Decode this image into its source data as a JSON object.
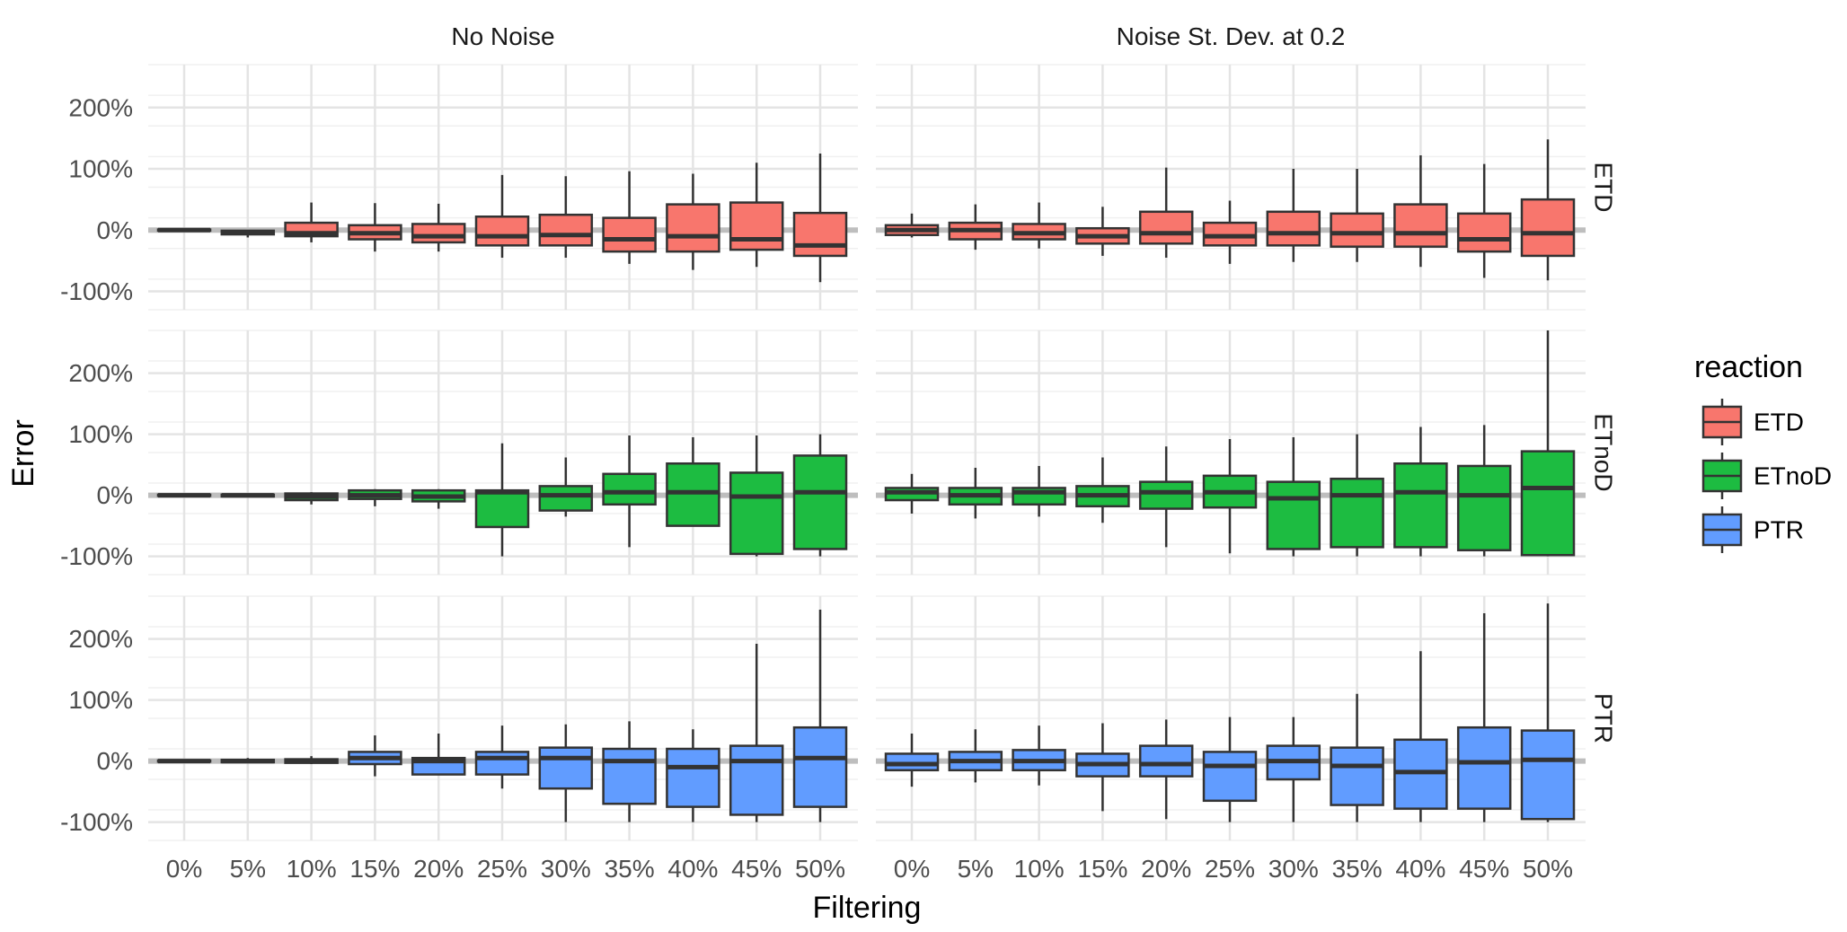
{
  "chart_data": {
    "type": "box",
    "xlabel": "Filtering",
    "ylabel": "Error",
    "categories": [
      "0%",
      "5%",
      "10%",
      "15%",
      "20%",
      "25%",
      "30%",
      "35%",
      "40%",
      "45%",
      "50%"
    ],
    "y_ticks": [
      -100,
      0,
      100,
      200
    ],
    "y_tick_labels": [
      "-100%",
      "0%",
      "100%",
      "200%"
    ],
    "ylim": [
      -130,
      270
    ],
    "grid": true,
    "facet_columns": [
      "No Noise",
      "Noise St. Dev. at 0.2"
    ],
    "facet_rows": [
      "ETD",
      "ETnoD",
      "PTR"
    ],
    "reference_line_y": 0,
    "legend": {
      "title": "reaction",
      "position": "right",
      "items": [
        {
          "label": "ETD",
          "color": "#F8766D"
        },
        {
          "label": "ETnoD",
          "color": "#1DBC41"
        },
        {
          "label": "PTR",
          "color": "#619CFF"
        }
      ]
    },
    "panels": [
      {
        "row": "ETD",
        "column": "No Noise",
        "boxes": [
          [
            -1,
            -1,
            0,
            1,
            1
          ],
          [
            -12,
            -7,
            -4,
            -1,
            0
          ],
          [
            -20,
            -10,
            -5,
            12,
            45
          ],
          [
            -35,
            -15,
            -5,
            8,
            44
          ],
          [
            -35,
            -20,
            -10,
            10,
            43
          ],
          [
            -45,
            -25,
            -10,
            22,
            90
          ],
          [
            -45,
            -25,
            -8,
            25,
            88
          ],
          [
            -55,
            -35,
            -15,
            20,
            96
          ],
          [
            -65,
            -35,
            -10,
            42,
            92
          ],
          [
            -60,
            -32,
            -15,
            45,
            110
          ],
          [
            -85,
            -42,
            -25,
            28,
            125
          ]
        ]
      },
      {
        "row": "ETD",
        "column": "Noise St. Dev. at 0.2",
        "boxes": [
          [
            -12,
            -8,
            0,
            8,
            27
          ],
          [
            -32,
            -15,
            0,
            12,
            42
          ],
          [
            -30,
            -15,
            -5,
            10,
            45
          ],
          [
            -42,
            -22,
            -10,
            3,
            38
          ],
          [
            -45,
            -22,
            -5,
            30,
            102
          ],
          [
            -55,
            -25,
            -10,
            12,
            48
          ],
          [
            -52,
            -25,
            -5,
            30,
            100
          ],
          [
            -52,
            -27,
            -5,
            27,
            100
          ],
          [
            -60,
            -27,
            -5,
            42,
            122
          ],
          [
            -78,
            -35,
            -15,
            27,
            108
          ],
          [
            -82,
            -42,
            -5,
            50,
            148
          ]
        ]
      },
      {
        "row": "ETnoD",
        "column": "No Noise",
        "boxes": [
          [
            -1,
            -1,
            0,
            1,
            1
          ],
          [
            -3,
            -2,
            0,
            1,
            2
          ],
          [
            -15,
            -8,
            -2,
            3,
            5
          ],
          [
            -18,
            -6,
            0,
            8,
            10
          ],
          [
            -22,
            -10,
            -2,
            8,
            10
          ],
          [
            -100,
            -52,
            5,
            8,
            85
          ],
          [
            -35,
            -25,
            0,
            15,
            62
          ],
          [
            -85,
            -15,
            5,
            35,
            98
          ],
          [
            -50,
            -50,
            5,
            52,
            95
          ],
          [
            -100,
            -96,
            -2,
            37,
            98
          ],
          [
            -100,
            -88,
            5,
            65,
            100
          ]
        ]
      },
      {
        "row": "ETnoD",
        "column": "Noise St. Dev. at 0.2",
        "boxes": [
          [
            -30,
            -8,
            5,
            12,
            35
          ],
          [
            -38,
            -15,
            0,
            12,
            45
          ],
          [
            -35,
            -15,
            5,
            12,
            48
          ],
          [
            -45,
            -18,
            0,
            15,
            62
          ],
          [
            -85,
            -22,
            5,
            22,
            80
          ],
          [
            -95,
            -20,
            5,
            32,
            92
          ],
          [
            -100,
            -88,
            -5,
            22,
            95
          ],
          [
            -100,
            -85,
            0,
            27,
            100
          ],
          [
            -100,
            -85,
            5,
            52,
            112
          ],
          [
            -100,
            -90,
            0,
            48,
            115
          ],
          [
            -100,
            -98,
            12,
            72,
            270
          ]
        ]
      },
      {
        "row": "PTR",
        "column": "No Noise",
        "boxes": [
          [
            -1,
            -1,
            0,
            1,
            1
          ],
          [
            -2,
            -2,
            0,
            2,
            5
          ],
          [
            -5,
            -3,
            0,
            3,
            8
          ],
          [
            -25,
            -5,
            5,
            15,
            42
          ],
          [
            -22,
            -22,
            0,
            5,
            45
          ],
          [
            -45,
            -22,
            5,
            15,
            58
          ],
          [
            -100,
            -45,
            5,
            22,
            60
          ],
          [
            -100,
            -70,
            0,
            20,
            65
          ],
          [
            -100,
            -75,
            -10,
            20,
            52
          ],
          [
            -100,
            -88,
            0,
            25,
            192
          ],
          [
            -100,
            -75,
            5,
            55,
            248
          ]
        ]
      },
      {
        "row": "PTR",
        "column": "Noise St. Dev. at 0.2",
        "boxes": [
          [
            -42,
            -15,
            -5,
            12,
            45
          ],
          [
            -35,
            -15,
            0,
            15,
            52
          ],
          [
            -40,
            -15,
            0,
            18,
            58
          ],
          [
            -82,
            -25,
            -5,
            12,
            62
          ],
          [
            -95,
            -25,
            -5,
            25,
            68
          ],
          [
            -100,
            -65,
            -8,
            15,
            72
          ],
          [
            -100,
            -30,
            0,
            25,
            72
          ],
          [
            -100,
            -72,
            -8,
            22,
            110
          ],
          [
            -100,
            -78,
            -18,
            35,
            180
          ],
          [
            -100,
            -78,
            -2,
            55,
            242
          ],
          [
            -100,
            -95,
            2,
            50,
            258
          ]
        ]
      }
    ]
  }
}
